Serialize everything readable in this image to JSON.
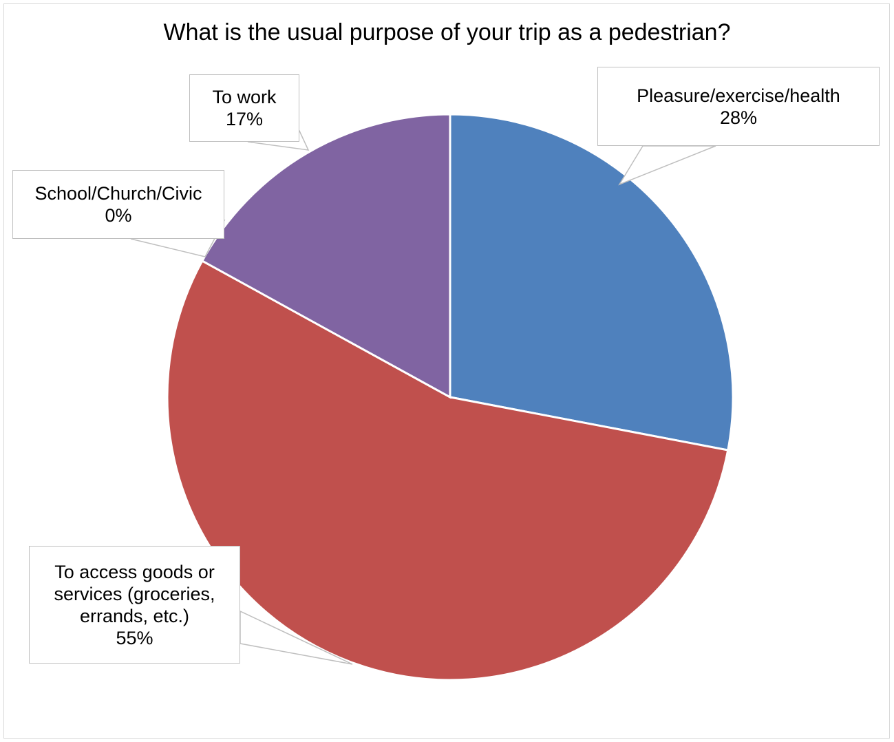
{
  "chart_data": {
    "type": "pie",
    "title": "What is the usual purpose of your trip as a pedestrian?",
    "slices": [
      {
        "label": "Pleasure/exercise/health",
        "value": 28,
        "display": "28%",
        "color": "#4f81bd"
      },
      {
        "label": "To access goods or services (groceries, errands, etc.)",
        "value": 55,
        "display": "55%",
        "color": "#c0504d"
      },
      {
        "label": "School/Church/Civic",
        "value": 0,
        "display": "0%",
        "color": "#9bbb59"
      },
      {
        "label": "To work",
        "value": 17,
        "display": "17%",
        "color": "#8064a2"
      }
    ],
    "start_angle_deg": 0,
    "direction": "clockwise",
    "legend": "none"
  }
}
